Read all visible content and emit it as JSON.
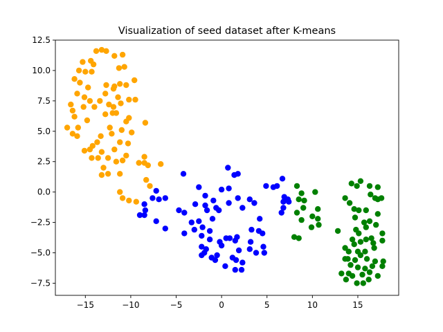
{
  "chart_data": {
    "type": "scatter",
    "title": "Visualization of seed dataset after K-means",
    "xlabel": "",
    "ylabel": "",
    "xlim": [
      -18.3,
      19.5
    ],
    "ylim": [
      -8.5,
      12.5
    ],
    "xticks": [
      -15,
      -10,
      -5,
      0,
      5,
      10,
      15
    ],
    "xtick_labels": [
      "−15",
      "−10",
      "−5",
      "0",
      "5",
      "10",
      "15"
    ],
    "yticks": [
      -7.5,
      -5.0,
      -2.5,
      0.0,
      2.5,
      5.0,
      7.5,
      10.0,
      12.5
    ],
    "ytick_labels": [
      "−7.5",
      "−5.0",
      "−2.5",
      "0.0",
      "2.5",
      "5.0",
      "7.5",
      "10.0",
      "12.5"
    ],
    "grid": false,
    "legend": "none",
    "series": [
      {
        "color": "#ffa500",
        "points": [
          [
            -15.3,
            10.7
          ],
          [
            -14.4,
            10.8
          ],
          [
            -14.1,
            10.5
          ],
          [
            -13.8,
            11.6
          ],
          [
            -13.2,
            11.7
          ],
          [
            -12.7,
            11.6
          ],
          [
            -11.8,
            11.2
          ],
          [
            -10.9,
            11.3
          ],
          [
            -15.7,
            10.0
          ],
          [
            -15.0,
            9.9
          ],
          [
            -14.3,
            9.9
          ],
          [
            -11.3,
            10.2
          ],
          [
            -10.7,
            10.3
          ],
          [
            -16.2,
            9.3
          ],
          [
            -15.6,
            9.0
          ],
          [
            -9.6,
            9.2
          ],
          [
            -12.7,
            8.8
          ],
          [
            -11.8,
            8.7
          ],
          [
            -11.2,
            8.9
          ],
          [
            -10.5,
            8.8
          ],
          [
            -14.7,
            8.6
          ],
          [
            -12.8,
            8.1
          ],
          [
            -11.9,
            8.5
          ],
          [
            -15.9,
            8.1
          ],
          [
            -15.1,
            7.8
          ],
          [
            -14.5,
            7.5
          ],
          [
            -13.4,
            7.5
          ],
          [
            -11.4,
            7.8
          ],
          [
            -10.2,
            7.6
          ],
          [
            -9.5,
            7.6
          ],
          [
            -11.1,
            7.3
          ],
          [
            -16.6,
            7.2
          ],
          [
            -15.2,
            7.0
          ],
          [
            -14.0,
            7.0
          ],
          [
            -12.4,
            7.2
          ],
          [
            -11.9,
            7.0
          ],
          [
            -16.4,
            6.7
          ],
          [
            -12.8,
            6.4
          ],
          [
            -12.0,
            6.5
          ],
          [
            -11.6,
            6.5
          ],
          [
            -16.2,
            6.2
          ],
          [
            -14.8,
            5.9
          ],
          [
            -10.5,
            5.8
          ],
          [
            -10.2,
            6.1
          ],
          [
            -8.4,
            5.7
          ],
          [
            -15.8,
            5.3
          ],
          [
            -12.3,
            5.3
          ],
          [
            -12.1,
            4.8
          ],
          [
            -11.0,
            5.1
          ],
          [
            -9.9,
            4.9
          ],
          [
            -17.0,
            5.3
          ],
          [
            -16.4,
            4.8
          ],
          [
            -15.9,
            4.6
          ],
          [
            -13.3,
            4.6
          ],
          [
            -13.7,
            4.1
          ],
          [
            -11.2,
            4.1
          ],
          [
            -10.3,
            4.0
          ],
          [
            -14.2,
            3.8
          ],
          [
            -14.5,
            3.5
          ],
          [
            -13.2,
            3.3
          ],
          [
            -15.1,
            3.4
          ],
          [
            -11.8,
            3.5
          ],
          [
            -10.5,
            3.0
          ],
          [
            -12.5,
            2.8
          ],
          [
            -14.3,
            2.8
          ],
          [
            -13.6,
            2.8
          ],
          [
            -11.6,
            2.5
          ],
          [
            -10.9,
            2.6
          ],
          [
            -9.1,
            2.4
          ],
          [
            -8.5,
            2.4
          ],
          [
            -8.5,
            2.9
          ],
          [
            -8.1,
            2.2
          ],
          [
            -6.7,
            2.3
          ],
          [
            -13.0,
            2.0
          ],
          [
            -12.5,
            1.5
          ],
          [
            -13.2,
            1.4
          ],
          [
            -11.2,
            1.5
          ],
          [
            -8.3,
            1.0
          ],
          [
            -7.9,
            0.5
          ],
          [
            -11.2,
            0.0
          ],
          [
            -10.9,
            -0.5
          ],
          [
            -10.2,
            -0.7
          ],
          [
            -9.4,
            -0.8
          ]
        ]
      },
      {
        "color": "#0000ff",
        "points": [
          [
            -7.2,
            0.1
          ],
          [
            -7.6,
            -0.5
          ],
          [
            -6.9,
            -0.6
          ],
          [
            -6.2,
            -0.5
          ],
          [
            -7.2,
            -2.4
          ],
          [
            -6.2,
            -3.0
          ],
          [
            -9.0,
            -1.9
          ],
          [
            -8.5,
            -1.9
          ],
          [
            -8.4,
            -1.5
          ],
          [
            -8.5,
            -1.0
          ],
          [
            -4.2,
            1.5
          ],
          [
            -2.5,
            0.4
          ],
          [
            -1.8,
            -0.3
          ],
          [
            -2.9,
            -1.0
          ],
          [
            -4.7,
            -1.5
          ],
          [
            -4.1,
            -1.7
          ],
          [
            -3.3,
            -2.5
          ],
          [
            -2.5,
            -2.4
          ],
          [
            -1.8,
            -1.1
          ],
          [
            -1.6,
            -1.5
          ],
          [
            -1.0,
            -2.2
          ],
          [
            -0.6,
            -1.3
          ],
          [
            -0.3,
            -1.5
          ],
          [
            -3.0,
            -3.1
          ],
          [
            -2.1,
            -2.9
          ],
          [
            -1.3,
            -3.2
          ],
          [
            -4.1,
            -3.4
          ],
          [
            -2.2,
            -3.6
          ],
          [
            -1.3,
            -3.9
          ],
          [
            -0.2,
            -4.1
          ],
          [
            -1.1,
            -5.4
          ],
          [
            -0.7,
            -5.6
          ],
          [
            0.0,
            -4.4
          ],
          [
            0.5,
            -3.8
          ],
          [
            0.9,
            -3.8
          ],
          [
            1.5,
            -4.0
          ],
          [
            1.7,
            -3.7
          ],
          [
            -0.9,
            -0.7
          ],
          [
            0.0,
            0.2
          ],
          [
            0.8,
            0.3
          ],
          [
            0.7,
            2.0
          ],
          [
            1.4,
            1.4
          ],
          [
            1.8,
            1.5
          ],
          [
            0.8,
            -0.9
          ],
          [
            1.8,
            -0.5
          ],
          [
            2.3,
            -1.3
          ],
          [
            3.1,
            -0.6
          ],
          [
            3.6,
            -0.9
          ],
          [
            4.2,
            -2.2
          ],
          [
            4.1,
            -3.2
          ],
          [
            3.3,
            -3.1
          ],
          [
            3.2,
            -4.1
          ],
          [
            4.5,
            -3.4
          ],
          [
            1.9,
            -4.8
          ],
          [
            3.1,
            -4.7
          ],
          [
            3.8,
            -5.0
          ],
          [
            4.6,
            -4.5
          ],
          [
            4.7,
            -5.0
          ],
          [
            1.2,
            -5.4
          ],
          [
            1.6,
            -5.6
          ],
          [
            2.3,
            -5.8
          ],
          [
            1.5,
            -6.4
          ],
          [
            2.2,
            -6.4
          ],
          [
            -0.5,
            -5.2
          ],
          [
            -2.2,
            -4.5
          ],
          [
            -1.7,
            -4.7
          ],
          [
            -1.9,
            -5.0
          ],
          [
            -2.2,
            -5.2
          ],
          [
            4.9,
            0.5
          ],
          [
            6.1,
            0.5
          ],
          [
            6.7,
            1.1
          ],
          [
            5.7,
            0.4
          ],
          [
            6.9,
            -0.4
          ],
          [
            7.3,
            -0.6
          ],
          [
            7.4,
            -0.8
          ],
          [
            6.8,
            -0.8
          ],
          [
            6.8,
            -1.3
          ],
          [
            6.6,
            -1.7
          ],
          [
            0.4,
            -6.1
          ]
        ]
      },
      {
        "color": "#008000",
        "points": [
          [
            8.3,
            0.5
          ],
          [
            8.8,
            -0.1
          ],
          [
            8.5,
            -0.6
          ],
          [
            9.1,
            -0.7
          ],
          [
            10.3,
            0.0
          ],
          [
            9.0,
            -1.3
          ],
          [
            10.6,
            -1.4
          ],
          [
            8.3,
            -1.7
          ],
          [
            8.8,
            -2.3
          ],
          [
            10.0,
            -2.0
          ],
          [
            10.6,
            -2.2
          ],
          [
            9.9,
            -2.9
          ],
          [
            10.7,
            -2.7
          ],
          [
            8.0,
            -3.7
          ],
          [
            8.5,
            -3.8
          ],
          [
            12.8,
            -3.2
          ],
          [
            13.6,
            -0.5
          ],
          [
            14.3,
            0.7
          ],
          [
            14.9,
            0.5
          ],
          [
            15.3,
            0.9
          ],
          [
            16.3,
            0.5
          ],
          [
            17.2,
            0.4
          ],
          [
            16.4,
            -0.2
          ],
          [
            16.9,
            -0.5
          ],
          [
            17.6,
            -0.5
          ],
          [
            17.2,
            -0.6
          ],
          [
            14.1,
            -0.9
          ],
          [
            14.6,
            -1.4
          ],
          [
            15.1,
            -1.5
          ],
          [
            15.9,
            -1.5
          ],
          [
            17.2,
            -1.8
          ],
          [
            14.7,
            -2.1
          ],
          [
            15.7,
            -2.5
          ],
          [
            16.3,
            -2.4
          ],
          [
            17.0,
            -2.7
          ],
          [
            14.8,
            -3.1
          ],
          [
            15.9,
            -2.9
          ],
          [
            15.1,
            -3.4
          ],
          [
            14.4,
            -3.9
          ],
          [
            14.6,
            -4.3
          ],
          [
            15.3,
            -4.1
          ],
          [
            15.9,
            -3.9
          ],
          [
            16.5,
            -3.8
          ],
          [
            17.7,
            -3.4
          ],
          [
            16.7,
            -4.2
          ],
          [
            17.7,
            -4.0
          ],
          [
            13.6,
            -4.6
          ],
          [
            14.0,
            -4.9
          ],
          [
            15.0,
            -4.9
          ],
          [
            15.8,
            -4.9
          ],
          [
            16.8,
            -4.6
          ],
          [
            13.9,
            -5.5
          ],
          [
            13.6,
            -5.5
          ],
          [
            14.7,
            -5.6
          ],
          [
            15.3,
            -5.2
          ],
          [
            16.0,
            -5.5
          ],
          [
            16.9,
            -5.7
          ],
          [
            17.8,
            -5.7
          ],
          [
            14.2,
            -6.0
          ],
          [
            15.0,
            -6.2
          ],
          [
            15.8,
            -6.3
          ],
          [
            16.6,
            -6.1
          ],
          [
            17.7,
            -6.1
          ],
          [
            13.2,
            -6.7
          ],
          [
            14.0,
            -6.7
          ],
          [
            14.4,
            -6.9
          ],
          [
            15.5,
            -6.8
          ],
          [
            16.3,
            -6.6
          ],
          [
            17.2,
            -6.9
          ],
          [
            13.7,
            -7.2
          ],
          [
            14.9,
            -7.5
          ],
          [
            15.6,
            -7.5
          ],
          [
            16.2,
            -7.2
          ]
        ]
      }
    ]
  }
}
